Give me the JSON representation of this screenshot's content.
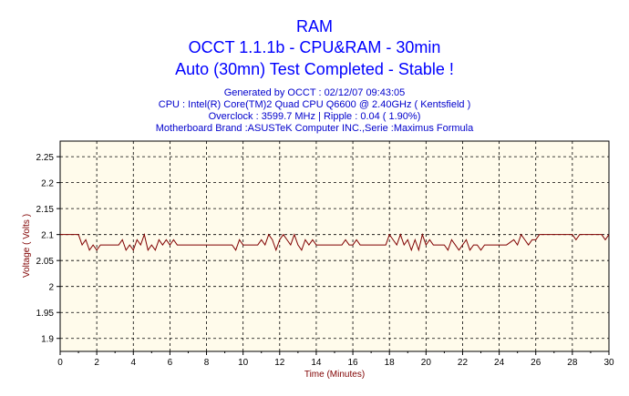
{
  "header": {
    "title": "RAM",
    "line2": "OCCT 1.1.1b - CPU&RAM - 30min",
    "line3": "Auto (30mn) Test Completed - Stable !",
    "generated": "Generated by OCCT : 02/12/07 09:43:05",
    "cpu": "CPU : Intel(R) Core(TM)2 Quad CPU Q6600 @ 2.40GHz ( Kentsfield )",
    "overclock": "Overclock : 3599.7 MHz | Ripple : 0.04 ( 1.90%)",
    "motherboard": "Motherboard Brand :ASUSTeK Computer INC.,Serie :Maximus Formula"
  },
  "colors": {
    "line": "#800000",
    "plot_bg": "#fffbeb",
    "axis_label": "#800000",
    "title": "#0000ff"
  },
  "chart_data": {
    "type": "line",
    "title": "RAM",
    "xlabel": "Time (Minutes)",
    "ylabel": "Voltage ( Volts )",
    "xlim": [
      0,
      30
    ],
    "ylim": [
      1.875,
      2.28
    ],
    "xticks": [
      0,
      2,
      4,
      6,
      8,
      10,
      12,
      14,
      16,
      18,
      20,
      22,
      24,
      26,
      28,
      30
    ],
    "yticks": [
      1.9,
      1.95,
      2,
      2.05,
      2.1,
      2.15,
      2.2,
      2.25
    ],
    "ytick_labels": [
      "1.9",
      "1.95",
      "2",
      "2.05",
      "2.1",
      "2.15",
      "2.2",
      "2.25"
    ],
    "grid": true,
    "series": [
      {
        "values": [
          [
            0,
            2.1
          ],
          [
            1.0,
            2.1
          ],
          [
            1.2,
            2.08
          ],
          [
            1.4,
            2.09
          ],
          [
            1.6,
            2.07
          ],
          [
            1.8,
            2.08
          ],
          [
            2.0,
            2.07
          ],
          [
            2.2,
            2.08
          ],
          [
            2.4,
            2.08
          ],
          [
            3.2,
            2.08
          ],
          [
            3.4,
            2.09
          ],
          [
            3.6,
            2.07
          ],
          [
            3.8,
            2.08
          ],
          [
            4.0,
            2.07
          ],
          [
            4.2,
            2.09
          ],
          [
            4.4,
            2.08
          ],
          [
            4.6,
            2.1
          ],
          [
            4.8,
            2.07
          ],
          [
            5.0,
            2.08
          ],
          [
            5.2,
            2.07
          ],
          [
            5.4,
            2.09
          ],
          [
            5.6,
            2.08
          ],
          [
            5.8,
            2.09
          ],
          [
            6.0,
            2.08
          ],
          [
            6.2,
            2.09
          ],
          [
            6.4,
            2.08
          ],
          [
            6.6,
            2.08
          ],
          [
            9.4,
            2.08
          ],
          [
            9.6,
            2.07
          ],
          [
            9.8,
            2.09
          ],
          [
            10.0,
            2.08
          ],
          [
            10.2,
            2.08
          ],
          [
            10.8,
            2.08
          ],
          [
            11.0,
            2.09
          ],
          [
            11.2,
            2.08
          ],
          [
            11.4,
            2.1
          ],
          [
            11.6,
            2.09
          ],
          [
            11.8,
            2.07
          ],
          [
            12.0,
            2.09
          ],
          [
            12.2,
            2.1
          ],
          [
            12.4,
            2.09
          ],
          [
            12.6,
            2.08
          ],
          [
            12.8,
            2.1
          ],
          [
            13.0,
            2.08
          ],
          [
            13.2,
            2.07
          ],
          [
            13.4,
            2.09
          ],
          [
            13.6,
            2.08
          ],
          [
            13.8,
            2.09
          ],
          [
            14.0,
            2.08
          ],
          [
            14.2,
            2.08
          ],
          [
            15.4,
            2.08
          ],
          [
            15.6,
            2.09
          ],
          [
            15.8,
            2.08
          ],
          [
            16.0,
            2.08
          ],
          [
            16.2,
            2.09
          ],
          [
            16.4,
            2.08
          ],
          [
            17.8,
            2.08
          ],
          [
            18.0,
            2.1
          ],
          [
            18.2,
            2.09
          ],
          [
            18.4,
            2.08
          ],
          [
            18.6,
            2.1
          ],
          [
            18.8,
            2.08
          ],
          [
            19.0,
            2.09
          ],
          [
            19.2,
            2.07
          ],
          [
            19.4,
            2.09
          ],
          [
            19.6,
            2.07
          ],
          [
            19.8,
            2.1
          ],
          [
            20.0,
            2.08
          ],
          [
            20.2,
            2.09
          ],
          [
            20.4,
            2.08
          ],
          [
            21.0,
            2.08
          ],
          [
            21.2,
            2.07
          ],
          [
            21.4,
            2.09
          ],
          [
            21.6,
            2.08
          ],
          [
            21.8,
            2.07
          ],
          [
            22.0,
            2.08
          ],
          [
            22.2,
            2.09
          ],
          [
            22.4,
            2.07
          ],
          [
            22.6,
            2.08
          ],
          [
            22.8,
            2.08
          ],
          [
            23.0,
            2.07
          ],
          [
            23.2,
            2.08
          ],
          [
            23.4,
            2.08
          ],
          [
            24.4,
            2.08
          ],
          [
            24.8,
            2.09
          ],
          [
            25.0,
            2.08
          ],
          [
            25.2,
            2.1
          ],
          [
            25.4,
            2.09
          ],
          [
            25.6,
            2.08
          ],
          [
            25.8,
            2.09
          ],
          [
            26.0,
            2.09
          ],
          [
            26.2,
            2.1
          ],
          [
            28.0,
            2.1
          ],
          [
            28.2,
            2.09
          ],
          [
            28.4,
            2.1
          ],
          [
            28.6,
            2.1
          ],
          [
            29.6,
            2.1
          ],
          [
            29.8,
            2.09
          ],
          [
            30,
            2.1
          ]
        ]
      }
    ]
  }
}
